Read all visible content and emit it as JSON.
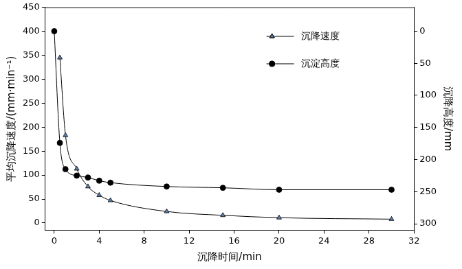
{
  "chart_data": {
    "type": "line",
    "x_label": "沉降时间/min",
    "y_label": "平均沉降速度/(mm·min⁻¹)",
    "y2_label": "沉降高度/mm",
    "xlim": [
      -0.8,
      32
    ],
    "xticks": [
      0,
      4,
      8,
      12,
      16,
      20,
      24,
      28,
      32
    ],
    "ylim": [
      -15,
      450
    ],
    "yticks": [
      0,
      50,
      100,
      150,
      200,
      250,
      300,
      350,
      400,
      450
    ],
    "y2lim": [
      310,
      -37
    ],
    "y2ticks": [
      0,
      50,
      100,
      150,
      200,
      250,
      300
    ],
    "grid": false,
    "legend": "upper right",
    "series": [
      {
        "name": "沉降速度",
        "color": "#5b7fa8",
        "marker": "triangle",
        "line_style": "solid",
        "x": [
          0.5,
          1,
          2,
          3,
          4,
          5,
          10,
          15,
          20,
          30
        ],
        "values": [
          345,
          183,
          113,
          76,
          58,
          47,
          24,
          16,
          11,
          8
        ]
      },
      {
        "name": "沉淀高度",
        "color": "#000000",
        "marker": "circle",
        "line_style": "solid",
        "axis": "y2",
        "x": [
          0,
          0.5,
          1,
          2,
          3,
          4,
          5,
          10,
          15,
          20,
          30
        ],
        "values": [
          0,
          174,
          215,
          225,
          228,
          233,
          236,
          242,
          244,
          247,
          247
        ]
      }
    ]
  }
}
